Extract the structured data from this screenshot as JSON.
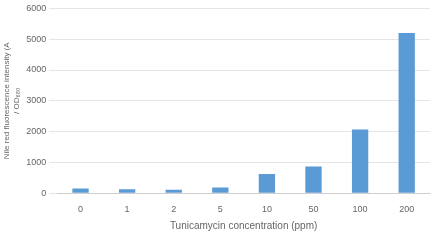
{
  "chart_data": {
    "type": "bar",
    "categories": [
      "0",
      "1",
      "2",
      "5",
      "10",
      "50",
      "100",
      "200"
    ],
    "values": [
      155,
      130,
      110,
      185,
      620,
      870,
      2070,
      5200
    ],
    "color": "#5b9bd5",
    "xlabel": "Tunicamycin concentration (ppm)",
    "ylabel": "Nile red fluorescence intensity (A\n/ OD₆₈₀",
    "ylim": [
      0,
      6000
    ],
    "yticks": [
      0,
      1000,
      2000,
      3000,
      4000,
      5000,
      6000
    ],
    "grid": true
  }
}
